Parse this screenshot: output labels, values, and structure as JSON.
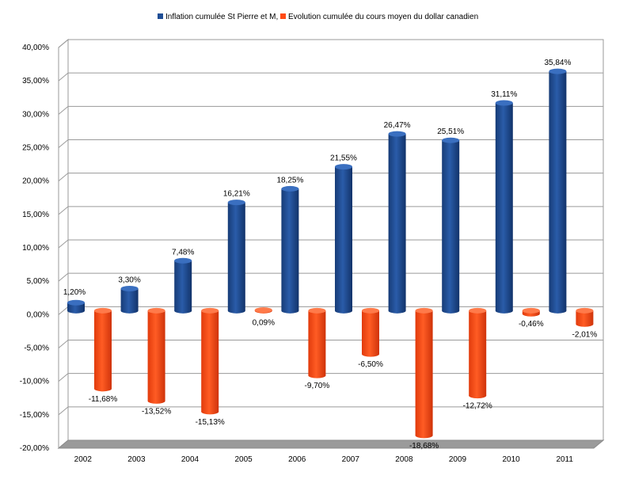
{
  "chart_data": {
    "type": "bar",
    "categories": [
      "2002",
      "2003",
      "2004",
      "2005",
      "2006",
      "2007",
      "2008",
      "2009",
      "2010",
      "2011"
    ],
    "series": [
      {
        "name": "Inflation cumulée St Pierre et M,",
        "color": "#1f4e96",
        "values": [
          1.2,
          3.3,
          7.48,
          16.21,
          18.25,
          21.55,
          26.47,
          25.51,
          31.11,
          35.84
        ],
        "labels": [
          "1,20%",
          "3,30%",
          "7,48%",
          "16,21%",
          "18,25%",
          "21,55%",
          "26,47%",
          "25,51%",
          "31,11%",
          "35,84%"
        ]
      },
      {
        "name": "Evolution cumulée du cours moyen du dollar canadien",
        "color": "#ff4a14",
        "values": [
          -11.68,
          -13.52,
          -15.13,
          0.09,
          -9.7,
          -6.5,
          -18.68,
          -12.72,
          -0.46,
          -2.01
        ],
        "labels": [
          "-11,68%",
          "-13,52%",
          "-15,13%",
          "0,09%",
          "-9,70%",
          "-6,50%",
          "-18,68%",
          "-12,72%",
          "-0,46%",
          "-2,01%"
        ]
      }
    ],
    "ylim": [
      -20,
      40
    ],
    "yticks": [
      40,
      35,
      30,
      25,
      20,
      15,
      10,
      5,
      0,
      -5,
      -10,
      -15,
      -20
    ],
    "ytick_labels": [
      "40,00%",
      "35,00%",
      "30,00%",
      "25,00%",
      "20,00%",
      "15,00%",
      "10,00%",
      "5,00%",
      "0,00%",
      "-5,00%",
      "-10,00%",
      "-15,00%",
      "-20,00%"
    ],
    "grid": true,
    "legend": "top-center",
    "title": "",
    "xlabel": "",
    "ylabel": ""
  }
}
